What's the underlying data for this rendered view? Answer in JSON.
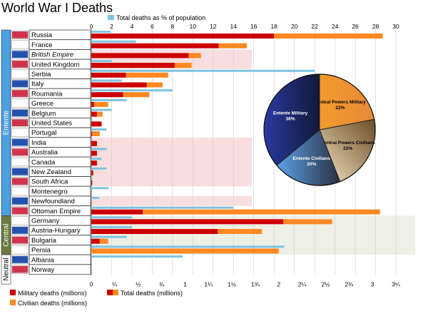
{
  "chart_data": {
    "type": "bar",
    "title": "World War I Deaths",
    "pct_axis": {
      "legend_label": "Total deaths as % of population",
      "ticks": [
        "0",
        "2",
        "4",
        "6",
        "8",
        "10",
        "12",
        "14",
        "16",
        "18",
        "20",
        "22",
        "24",
        "26",
        "28",
        "30"
      ],
      "max": 30
    },
    "deaths_axis": {
      "ticks": [
        "0",
        "¼",
        "½",
        "¾",
        "1",
        "1¼",
        "1½",
        "1¾",
        "2",
        "2¼",
        "2½",
        "2¾",
        "3",
        "3¼"
      ],
      "max": 3.25,
      "unit": "millions"
    },
    "legend": {
      "military": "Military deaths (millions)",
      "civilian": "Civilian deaths (millions)",
      "total": "Total deaths (millions)"
    },
    "groups": [
      {
        "name": "Entente",
        "color": "#4a9fe0",
        "from": 0,
        "to": 18
      },
      {
        "name": "Central",
        "color": "#6b7a3f",
        "from": 19,
        "to": 22
      },
      {
        "name": "Neutral",
        "color": "#ffffff",
        "from": 23,
        "to": 25
      }
    ],
    "categories": [
      "Russia",
      "France",
      "British Empire",
      "United Kingdom",
      "Serbia",
      "Italy",
      "Roumania",
      "Greece",
      "Belgium",
      "United States",
      "Portugal",
      "India",
      "Australia",
      "Canada",
      "New Zealand",
      "South Africa",
      "Montenegro",
      "Newfoundland",
      "Ottoman Empire",
      "Germany",
      "Austria-Hungary",
      "Bulgaria",
      "Persia",
      "Albania",
      "Norway"
    ],
    "italic_categories": [
      "British Empire"
    ],
    "series": [
      {
        "name": "Military deaths (millions)",
        "color": "#cc0000",
        "values": [
          1.95,
          1.36,
          1.04,
          0.89,
          0.37,
          0.59,
          0.34,
          0.03,
          0.06,
          0.11,
          0.01,
          0.06,
          0.06,
          0.06,
          0.02,
          0.01,
          0.003,
          0.002,
          0.55,
          2.05,
          1.35,
          0.09,
          0.0,
          0.0,
          0.0
        ]
      },
      {
        "name": "Civilian deaths (millions)",
        "color": "#ff8822",
        "values": [
          1.16,
          0.3,
          0.13,
          0.18,
          0.45,
          0.17,
          0.28,
          0.15,
          0.06,
          0.0,
          0.08,
          0.0,
          0.0,
          0.0,
          0.0,
          0.0,
          0.0,
          0.0,
          2.53,
          0.52,
          0.47,
          0.09,
          2.0,
          0.0,
          0.0
        ]
      },
      {
        "name": "Total deaths as % of population",
        "color": "#7fc4e0",
        "values": [
          1.9,
          4.4,
          0.0,
          2.0,
          22.0,
          3.0,
          8.0,
          3.5,
          2.0,
          0.1,
          1.5,
          0.0,
          1.5,
          1.0,
          1.5,
          0.1,
          1.7,
          0.8,
          14.0,
          4.0,
          4.0,
          3.5,
          19.0,
          9.0,
          0.0
        ]
      }
    ],
    "pie": {
      "slices": [
        {
          "label": "Central Powers Military",
          "value": 22,
          "display": "22%",
          "color": "#f0922a"
        },
        {
          "label": "Central Powers Civilians",
          "value": 22,
          "display": "22%",
          "color": "#ad8b52"
        },
        {
          "label": "Entente Civilians",
          "value": 20,
          "display": "20%",
          "color": "#5d8ec4"
        },
        {
          "label": "Entente Military",
          "value": 36,
          "display": "36%",
          "color": "#1d2b7a"
        }
      ]
    }
  }
}
